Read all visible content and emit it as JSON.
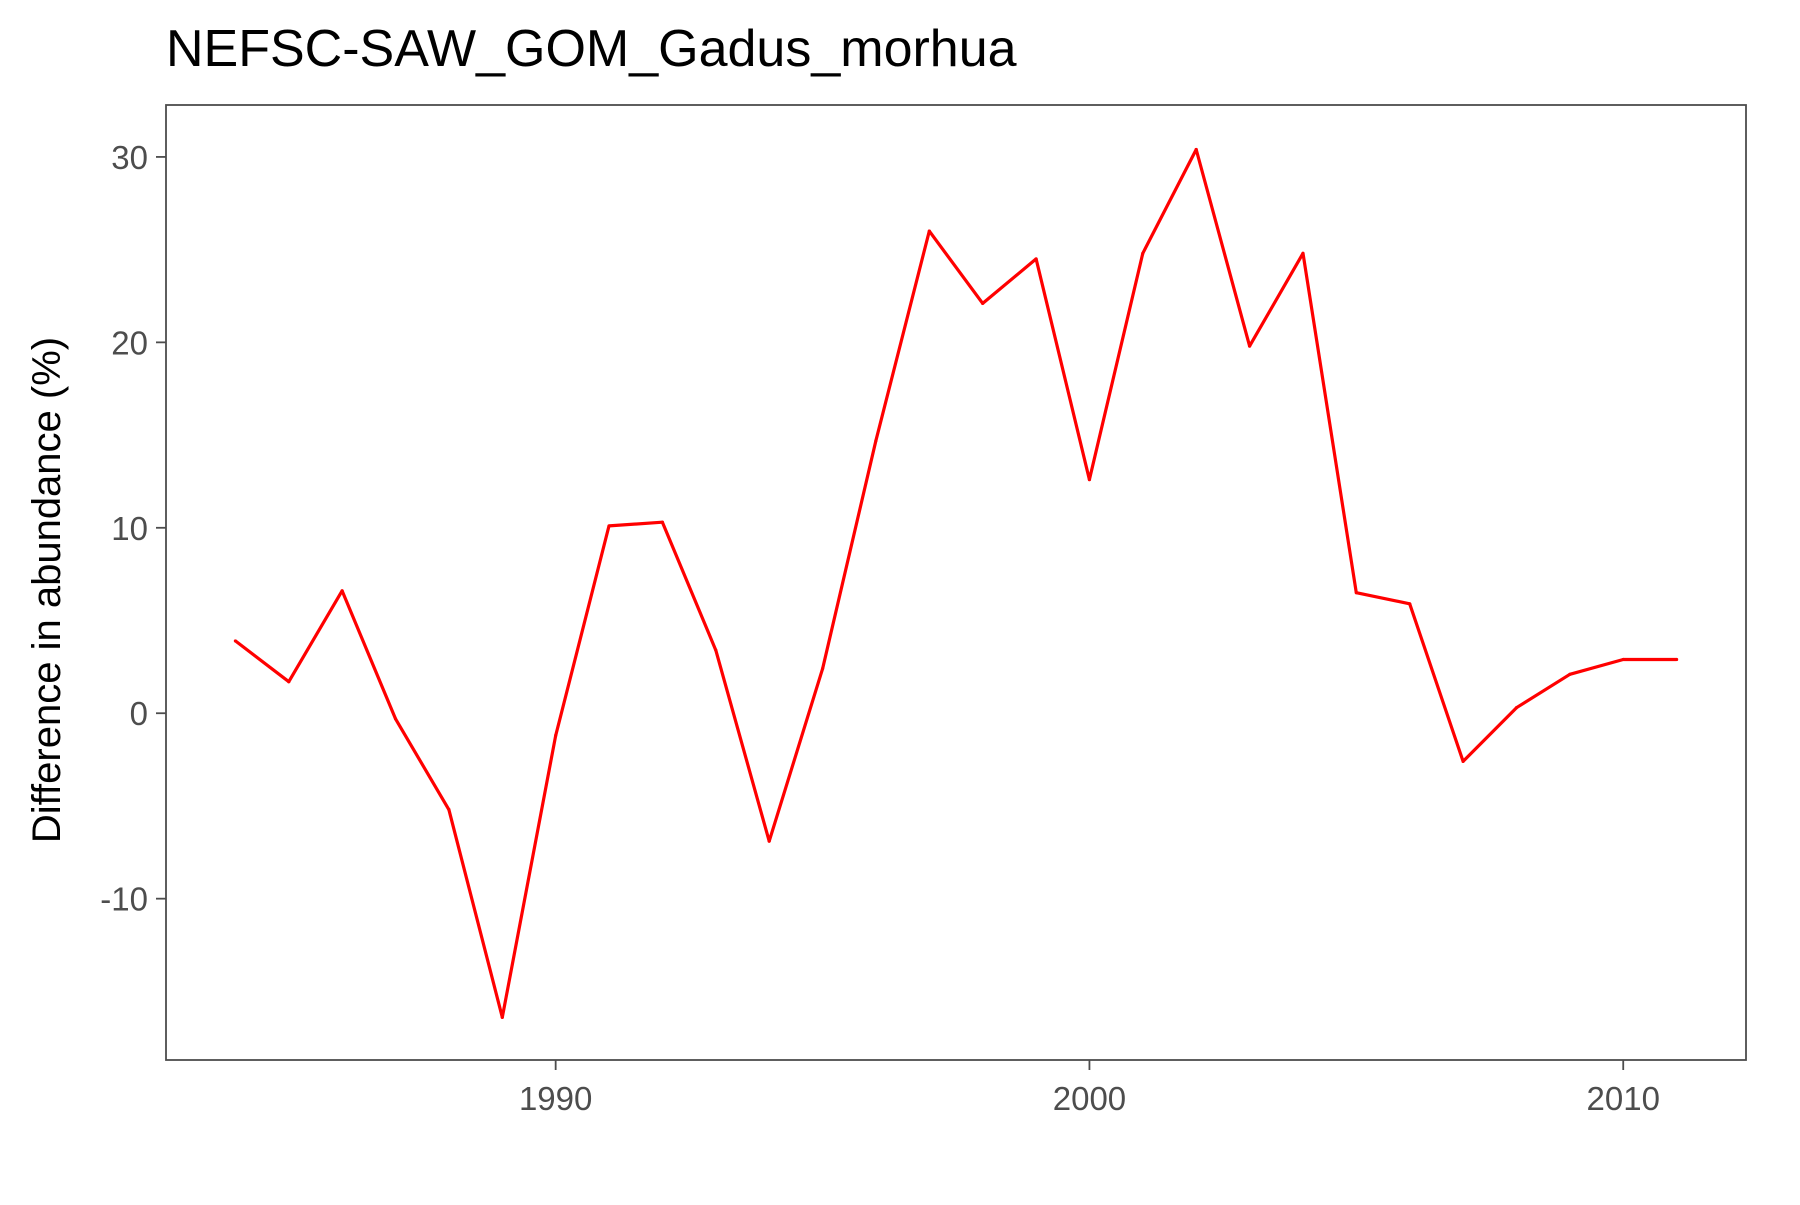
{
  "chart_data": {
    "type": "line",
    "title": "NEFSC-SAW_GOM_Gadus_morhua",
    "xlabel": "",
    "ylabel": "Difference in abundance (%)",
    "xlim": [
      1982.7,
      2012.3
    ],
    "ylim": [
      -18.7,
      32.8
    ],
    "x_ticks": [
      1990,
      2000,
      2010
    ],
    "y_ticks": [
      -10,
      0,
      10,
      20,
      30
    ],
    "grid": false,
    "legend": "none",
    "series": [
      {
        "color": "#ff0000",
        "x": [
          1984,
          1985,
          1986,
          1987,
          1988,
          1989,
          1990,
          1991,
          1992,
          1993,
          1994,
          1995,
          1996,
          1997,
          1998,
          1999,
          2000,
          2001,
          2002,
          2003,
          2004,
          2005,
          2006,
          2007,
          2008,
          2009,
          2010,
          2011
        ],
        "y": [
          3.9,
          1.7,
          6.6,
          -0.3,
          -5.2,
          -16.4,
          -1.2,
          10.1,
          10.3,
          3.4,
          -6.9,
          2.4,
          14.7,
          26.0,
          22.1,
          24.5,
          12.6,
          24.8,
          30.4,
          19.8,
          24.8,
          6.5,
          5.9,
          -2.6,
          0.3,
          2.1,
          2.9,
          2.9
        ]
      }
    ]
  }
}
